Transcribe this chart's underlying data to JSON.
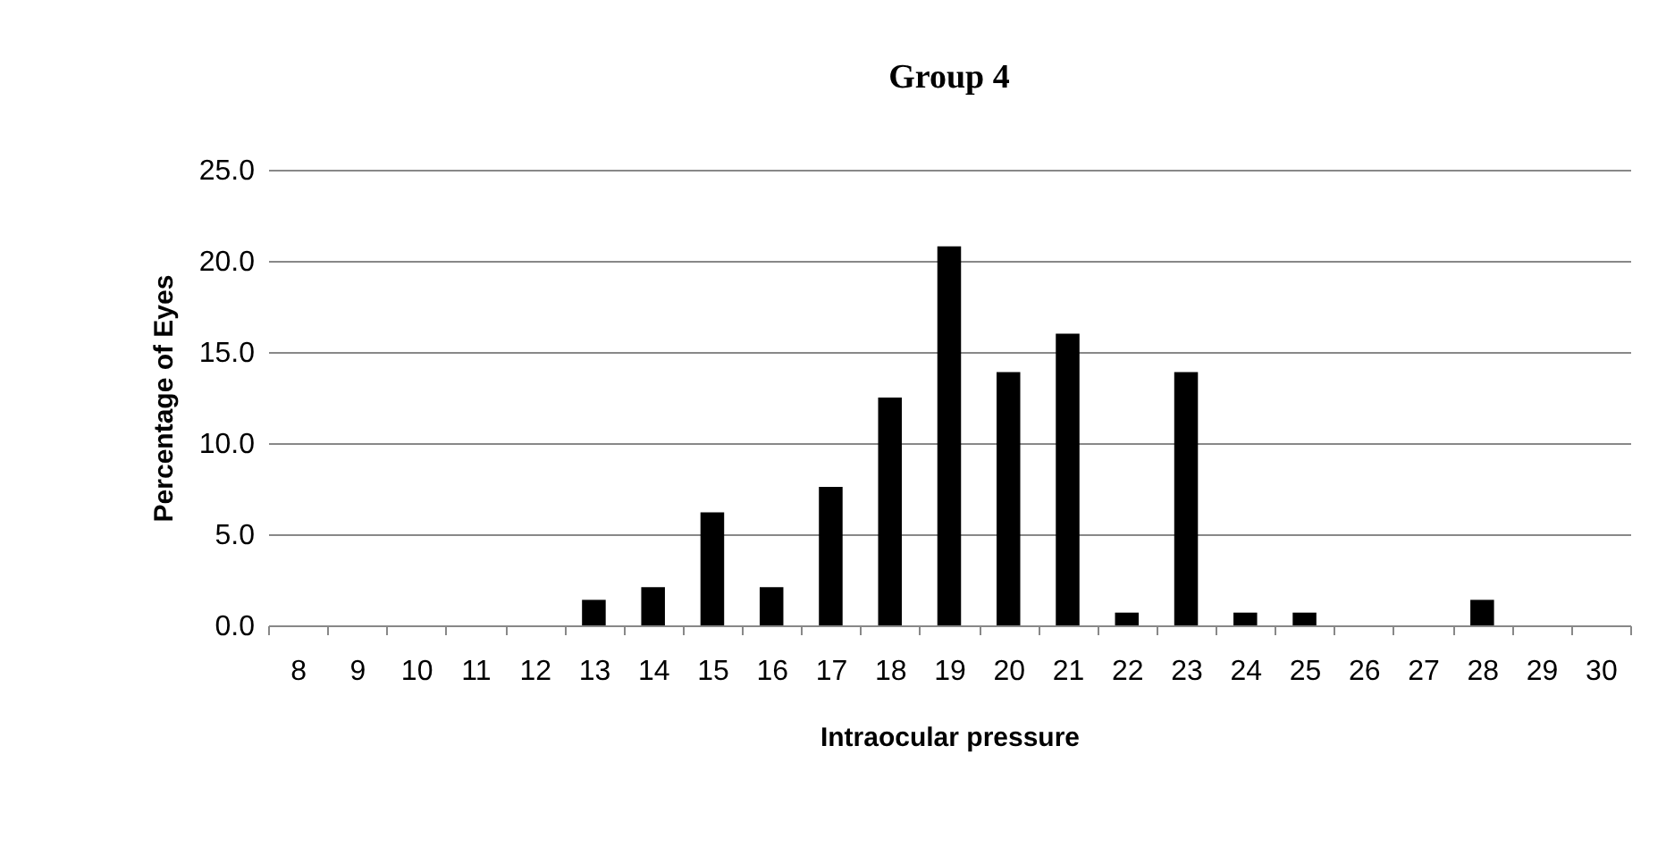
{
  "chart_data": {
    "type": "bar",
    "title": "Group 4",
    "xlabel": "Intraocular pressure",
    "ylabel": "Percentage of Eyes",
    "categories": [
      "8",
      "9",
      "10",
      "11",
      "12",
      "13",
      "14",
      "15",
      "16",
      "17",
      "18",
      "19",
      "20",
      "21",
      "22",
      "23",
      "24",
      "25",
      "26",
      "27",
      "28",
      "29",
      "30"
    ],
    "values": [
      0,
      0,
      0,
      0,
      0,
      1.4,
      2.1,
      6.2,
      2.1,
      7.6,
      12.5,
      20.8,
      13.9,
      16.0,
      0.7,
      13.9,
      0.7,
      0.7,
      0,
      0,
      1.4,
      0,
      0
    ],
    "color": "#000000",
    "ylim": [
      0,
      25
    ],
    "yticks": [
      {
        "value": 0,
        "label": "0.0"
      },
      {
        "value": 5,
        "label": "5.0"
      },
      {
        "value": 10,
        "label": "10.0"
      },
      {
        "value": 15,
        "label": "15.0"
      },
      {
        "value": 20,
        "label": "20.0"
      },
      {
        "value": 25,
        "label": "25.0"
      }
    ],
    "grid": "y"
  }
}
